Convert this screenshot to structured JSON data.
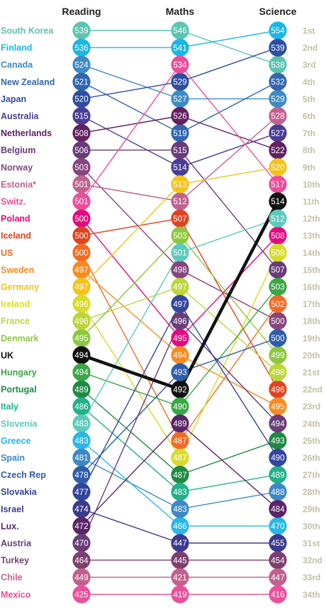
{
  "chart_data": {
    "type": "slope",
    "subjects": [
      "Reading",
      "Maths",
      "Science"
    ],
    "ranks": [
      "1st",
      "2nd",
      "3rd",
      "4th",
      "5th",
      "6th",
      "7th",
      "8th",
      "9th",
      "10th",
      "11th",
      "12th",
      "13th",
      "14th",
      "15th",
      "16th",
      "17th",
      "18th",
      "19th",
      "20th",
      "21st",
      "22nd",
      "23rd",
      "24th",
      "25th",
      "26th",
      "27th",
      "28th",
      "29th",
      "30th",
      "31st",
      "32nd",
      "33rd",
      "34th"
    ],
    "highlight": "UK",
    "countries": [
      {
        "name": "South Korea",
        "color": "#5ac4b0",
        "reading": 539,
        "maths": 546,
        "science": 538
      },
      {
        "name": "Finland",
        "color": "#1ab6e8",
        "reading": 536,
        "maths": 541,
        "science": 554
      },
      {
        "name": "Canada",
        "color": "#3d8ac6",
        "reading": 524,
        "maths": 527,
        "science": 529
      },
      {
        "name": "New Zealand",
        "color": "#3166b0",
        "reading": 521,
        "maths": 519,
        "science": 532
      },
      {
        "name": "Japan",
        "color": "#2f4ea0",
        "reading": 520,
        "maths": 529,
        "science": 539
      },
      {
        "name": "Australia",
        "color": "#4a3d94",
        "reading": 515,
        "maths": 514,
        "science": 527
      },
      {
        "name": "Netherlands",
        "color": "#63215f",
        "reading": 508,
        "maths": 526,
        "science": 522
      },
      {
        "name": "Belgium",
        "color": "#6b3a7a",
        "reading": 506,
        "maths": 515,
        "science": 507
      },
      {
        "name": "Norway",
        "color": "#86457f",
        "reading": 503,
        "maths": 498,
        "science": 500
      },
      {
        "name": "Estonia*",
        "color": "#c0628f",
        "reading": 501,
        "maths": 512,
        "science": 528
      },
      {
        "name": "Switz.",
        "color": "#ea4e9b",
        "reading": 501,
        "maths": 534,
        "science": 517
      },
      {
        "name": "Poland",
        "color": "#e5097f",
        "reading": 500,
        "maths": 495,
        "science": 508
      },
      {
        "name": "Iceland",
        "color": "#e0431f",
        "reading": 500,
        "maths": 507,
        "science": 496
      },
      {
        "name": "US",
        "color": "#f36b22",
        "reading": 500,
        "maths": 487,
        "science": 502
      },
      {
        "name": "Sweden",
        "color": "#f68b22",
        "reading": 497,
        "maths": 494,
        "science": 495
      },
      {
        "name": "Germany",
        "color": "#f6c21a",
        "reading": 497,
        "maths": 513,
        "science": 520
      },
      {
        "name": "Ireland",
        "color": "#d7dc2b",
        "reading": 496,
        "maths": 487,
        "science": 508
      },
      {
        "name": "France",
        "color": "#bcd63a",
        "reading": 496,
        "maths": 497,
        "science": 498
      },
      {
        "name": "Denmark",
        "color": "#8cc83e",
        "reading": 495,
        "maths": 503,
        "science": 499
      },
      {
        "name": "UK",
        "color": "#111111",
        "reading": 494,
        "maths": 492,
        "science": 514
      },
      {
        "name": "Hungary",
        "color": "#3aa745",
        "reading": 494,
        "maths": 490,
        "science": 503
      },
      {
        "name": "Portugal",
        "color": "#1f8a44",
        "reading": 489,
        "maths": 487,
        "science": 493
      },
      {
        "name": "Italy",
        "color": "#22b08a",
        "reading": 486,
        "maths": 483,
        "science": 489
      },
      {
        "name": "Slovenia",
        "color": "#5ccaba",
        "reading": 483,
        "maths": 501,
        "science": 512
      },
      {
        "name": "Greece",
        "color": "#29b7e5",
        "reading": 483,
        "maths": 466,
        "science": 470
      },
      {
        "name": "Spain",
        "color": "#3c88c8",
        "reading": 481,
        "maths": 483,
        "science": 488
      },
      {
        "name": "Czech Rep",
        "color": "#2e5dab",
        "reading": 478,
        "maths": 493,
        "science": 500
      },
      {
        "name": "Slovakia",
        "color": "#33459c",
        "reading": 477,
        "maths": 497,
        "science": 490
      },
      {
        "name": "Israel",
        "color": "#3b3a8f",
        "reading": 474,
        "maths": 447,
        "science": 455
      },
      {
        "name": "Lux.",
        "color": "#5a2468",
        "reading": 472,
        "maths": 489,
        "science": 484
      },
      {
        "name": "Austria",
        "color": "#6a3d7a",
        "reading": 470,
        "maths": 496,
        "science": 494
      },
      {
        "name": "Turkey",
        "color": "#7d3f70",
        "reading": 464,
        "maths": 445,
        "science": 454
      },
      {
        "name": "Chile",
        "color": "#c1608c",
        "reading": 449,
        "maths": 421,
        "science": 447
      },
      {
        "name": "Mexico",
        "color": "#ea4f9c",
        "reading": 425,
        "maths": 419,
        "science": 416
      }
    ]
  }
}
